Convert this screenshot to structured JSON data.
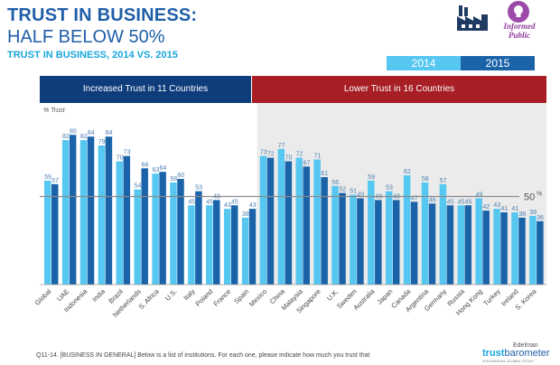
{
  "header": {
    "title_line1": "TRUST IN BUSINESS:",
    "title_line2": "HALF BELOW 50%",
    "subtitle": "TRUST IN BUSINESS, 2014 VS. 2015",
    "badge_text": "Informed Public"
  },
  "legend": {
    "label_2014": "2014",
    "label_2015": "2015"
  },
  "bands": {
    "increased": "Increased Trust in 11 Countries",
    "lower": "Lower Trust in 16 Countries"
  },
  "footer": {
    "question": "Q11-14. [BUSINESS IN GENERAL] Below is a list of institutions. For each one, please indicate how much you trust that",
    "brand_top": "Edelman",
    "brand_trust": "trust",
    "brand_rest": "barometer",
    "brand_sub": "2015 ANNUAL GLOBAL STUDY"
  },
  "colors": {
    "color_2014": "#56c7f0",
    "color_2015": "#1b63a9",
    "title_blue": "#1f5ea8",
    "band_blue": "#0f3d7c",
    "band_red": "#a71e24",
    "shaded_region": "#ebebeb"
  },
  "chart_data": {
    "type": "bar",
    "ylabel": "% Trust",
    "ylim": [
      0,
      100
    ],
    "grid": false,
    "reference_line": {
      "value": 50,
      "label": "50",
      "unit": "%"
    },
    "categories": [
      "Global",
      "UAE",
      "Indonesia",
      "India",
      "Brazil",
      "Netherlands",
      "S. Africa",
      "U.S.",
      "Italy",
      "Poland",
      "France",
      "Spain",
      "Mexico",
      "China",
      "Malaysia",
      "Singapore",
      "U.K.",
      "Sweden",
      "Australia",
      "Japan",
      "Canada",
      "Argentina",
      "Germany",
      "Russia",
      "Hong Kong",
      "Turkey",
      "Ireland",
      "S. Korea"
    ],
    "series": [
      {
        "name": "2014",
        "values": [
          59,
          82,
          82,
          79,
          70,
          54,
          63,
          58,
          45,
          45,
          43,
          38,
          73,
          77,
          72,
          71,
          56,
          51,
          59,
          53,
          62,
          58,
          57,
          45,
          49,
          43,
          41,
          39
        ]
      },
      {
        "name": "2015",
        "values": [
          57,
          85,
          84,
          84,
          73,
          66,
          64,
          60,
          53,
          48,
          45,
          43,
          72,
          70,
          67,
          61,
          52,
          49,
          48,
          48,
          47,
          46,
          45,
          45,
          42,
          41,
          38,
          36
        ]
      }
    ],
    "groups": [
      {
        "label": "Increased Trust in 11 Countries",
        "from": 1,
        "to": 11
      },
      {
        "label": "Lower Trust in 16 Countries",
        "from": 12,
        "to": 27
      }
    ]
  }
}
